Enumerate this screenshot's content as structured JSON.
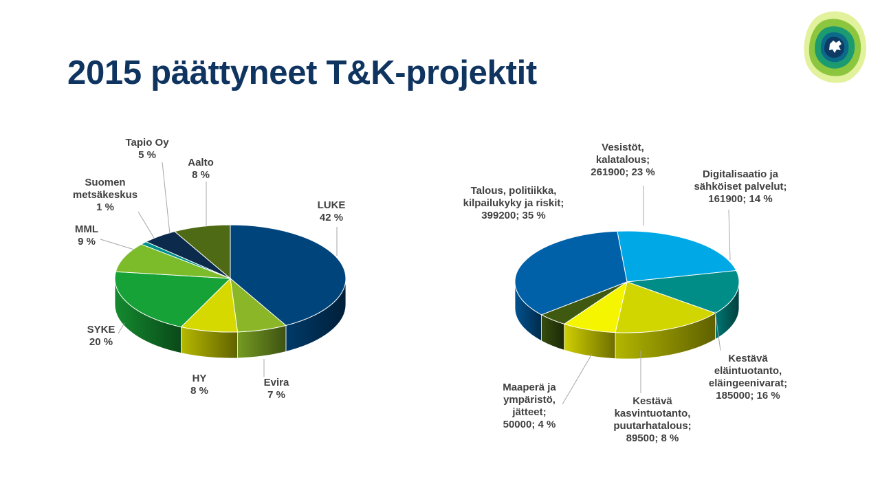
{
  "slide": {
    "title": "2015 päättyneet T&K-projektit"
  },
  "colors": {
    "title": "#0f3460",
    "label": "#404040"
  },
  "logo": {
    "icon": "finnish-lion-emblem-icon"
  },
  "chart_data": [
    {
      "type": "pie",
      "style": "3d",
      "slices": [
        {
          "lines": [
            "LUKE",
            "42 %"
          ],
          "value": 42,
          "color": "#00447c"
        },
        {
          "lines": [
            "Evira",
            "7 %"
          ],
          "value": 7,
          "color": "#8ab628"
        },
        {
          "lines": [
            "HY",
            "8 %"
          ],
          "value": 8,
          "color": "#d6d900"
        },
        {
          "lines": [
            "SYKE",
            "20 %"
          ],
          "value": 20,
          "color": "#17a237"
        },
        {
          "lines": [
            "MML",
            "9 %"
          ],
          "value": 9,
          "color": "#7cbc2a"
        },
        {
          "lines": [
            "Suomen",
            "metsäkeskus",
            "1 %"
          ],
          "value": 1,
          "color": "#00908c"
        },
        {
          "lines": [
            "Tapio Oy",
            "5 %"
          ],
          "value": 5,
          "color": "#0c2b4c"
        },
        {
          "lines": [
            "Aalto",
            "8 %"
          ],
          "value": 8,
          "color": "#4f6a14"
        }
      ]
    },
    {
      "type": "pie",
      "style": "3d",
      "slices": [
        {
          "lines": [
            "Vesistöt,",
            "kalatalous;",
            "261900; 23 %"
          ],
          "value": 261900,
          "percent": 23,
          "color": "#00a9e6"
        },
        {
          "lines": [
            "Digitalisaatio ja",
            "sähköiset palvelut;",
            "161900; 14 %"
          ],
          "value": 161900,
          "percent": 14,
          "color": "#008c87"
        },
        {
          "lines": [
            "Kestävä",
            "eläintuotanto,",
            "eläingeenivarat;",
            "185000; 16 %"
          ],
          "value": 185000,
          "percent": 16,
          "color": "#d2d600"
        },
        {
          "lines": [
            "Kestävä",
            "kasvintuotanto,",
            "puutarhatalous;",
            "89500; 8 %"
          ],
          "value": 89500,
          "percent": 8,
          "color": "#f5f500"
        },
        {
          "lines": [
            "Maaperä ja",
            "ympäristö,",
            "jätteet;",
            "50000; 4 %"
          ],
          "value": 50000,
          "percent": 4,
          "color": "#3f5a10"
        },
        {
          "lines": [
            "Talous, politiikka,",
            "kilpailukyky ja riskit;",
            "399200; 35 %"
          ],
          "value": 399200,
          "percent": 35,
          "color": "#0060a8"
        }
      ]
    }
  ]
}
